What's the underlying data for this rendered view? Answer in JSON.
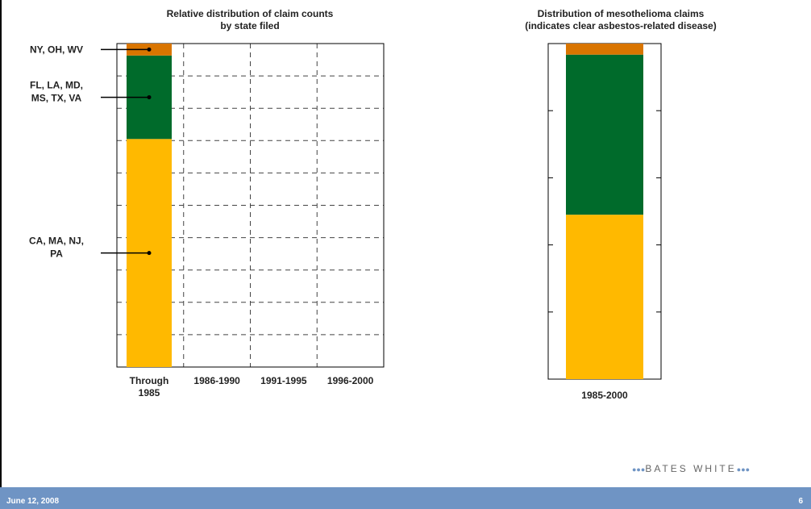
{
  "chart_data": [
    {
      "type": "bar",
      "stacked": true,
      "title": [
        "Relative distribution of claim counts",
        "by state filed"
      ],
      "categories": [
        "Through 1985",
        "1986-1990",
        "1991-1995",
        "1996-2000"
      ],
      "series": [
        {
          "name": "CA, MA, NJ, PA",
          "values": [
            70.5,
            null,
            null,
            null
          ],
          "color": "#ffb900"
        },
        {
          "name": "FL, LA, MD, MS, TX, VA",
          "values": [
            25.8,
            null,
            null,
            null
          ],
          "color": "#006b2b"
        },
        {
          "name": "NY, OH, WV",
          "values": [
            3.7,
            null,
            null,
            null
          ],
          "color": "#d97500"
        }
      ],
      "ylim": [
        0,
        100
      ],
      "grid": true
    },
    {
      "type": "bar",
      "stacked": true,
      "title": [
        "Distribution of mesothelioma claims",
        "(indicates clear asbestos-related disease)"
      ],
      "categories": [
        "1985-2000"
      ],
      "series": [
        {
          "values": [
            49
          ]
        },
        {
          "values": [
            47.7
          ]
        },
        {
          "values": [
            3.3
          ]
        }
      ],
      "ylim": [
        0,
        100
      ],
      "grid": false
    }
  ],
  "footer": {
    "date": "June 12, 2008",
    "page": "6",
    "logo": "BATES WHITE"
  }
}
